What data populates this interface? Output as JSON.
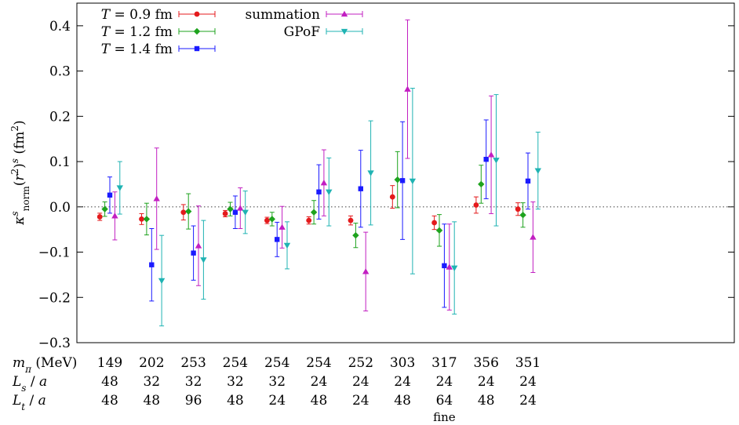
{
  "chart_data": {
    "type": "scatter",
    "ylabel": "κ^s_norm (r_2^2)^s (fm^2)",
    "ylim": [
      -0.3,
      0.45
    ],
    "yticks": [
      -0.3,
      -0.2,
      -0.1,
      0.0,
      0.1,
      0.2,
      0.3,
      0.4
    ],
    "ytick_labels": [
      "−0.3",
      "−0.2",
      "−0.1",
      "0.0",
      "0.1",
      "0.2",
      "0.3",
      "0.4"
    ],
    "zero_line": true,
    "grid": false,
    "legend_position": "top-left",
    "categories": [
      1,
      2,
      3,
      4,
      5,
      6,
      7,
      8,
      9,
      10,
      11
    ],
    "table_rows": [
      {
        "label": "m_π (MeV)",
        "values": [
          "149",
          "202",
          "253",
          "254",
          "254",
          "254",
          "252",
          "303",
          "317",
          "356",
          "351"
        ]
      },
      {
        "label": "L_s / a",
        "values": [
          "48",
          "32",
          "32",
          "32",
          "32",
          "24",
          "24",
          "24",
          "24",
          "24",
          "24"
        ]
      },
      {
        "label": "L_t / a",
        "values": [
          "48",
          "48",
          "96",
          "48",
          "24",
          "48",
          "24",
          "48",
          "64",
          "48",
          "24"
        ]
      }
    ],
    "annotations": [
      {
        "category_index": 8,
        "text": "fine"
      }
    ],
    "series": [
      {
        "name": "T = 0.9 fm",
        "color": "#e41a1c",
        "marker": "circle",
        "offset": -0.24,
        "y": [
          -0.022,
          -0.027,
          -0.012,
          -0.015,
          -0.03,
          -0.03,
          -0.03,
          0.022,
          -0.035,
          0.004,
          -0.005
        ],
        "err": [
          0.008,
          0.012,
          0.017,
          0.007,
          0.007,
          0.008,
          0.01,
          0.025,
          0.015,
          0.018,
          0.014
        ]
      },
      {
        "name": "T = 1.2 fm",
        "color": "#1ea31e",
        "marker": "diamond",
        "offset": -0.12,
        "y": [
          -0.005,
          -0.027,
          -0.01,
          -0.005,
          -0.027,
          -0.012,
          -0.063,
          0.06,
          -0.052,
          0.05,
          -0.018
        ],
        "err": [
          0.016,
          0.035,
          0.039,
          0.015,
          0.015,
          0.026,
          0.027,
          0.062,
          0.035,
          0.042,
          0.027
        ]
      },
      {
        "name": "T = 1.4 fm",
        "color": "#1a1aff",
        "marker": "square",
        "offset": 0.0,
        "y": [
          0.026,
          -0.128,
          -0.102,
          -0.012,
          -0.072,
          0.033,
          0.04,
          0.058,
          -0.13,
          0.105,
          0.057
        ]
      },
      {
        "name": "summation",
        "color": "#c21fc2",
        "marker": "triangle-up",
        "offset": 0.12,
        "y": [
          -0.02,
          0.018,
          -0.086,
          -0.003,
          -0.045,
          0.053,
          -0.143,
          0.26,
          -0.133,
          0.115,
          -0.067
        ],
        "err": [
          0.053,
          0.112,
          0.088,
          0.045,
          0.046,
          0.073,
          0.087,
          0.153,
          0.095,
          0.13,
          0.078
        ]
      },
      {
        "name": "GPoF",
        "color": "#1fb3b3",
        "marker": "triangle-down",
        "offset": 0.24,
        "y": [
          0.042,
          -0.163,
          -0.117,
          -0.012,
          -0.085,
          0.033,
          0.075,
          0.057,
          -0.135,
          0.103,
          0.08
        ],
        "err": [
          0.058,
          0.1,
          0.087,
          0.047,
          0.052,
          0.075,
          0.115,
          0.205,
          0.102,
          0.145,
          0.085
        ]
      }
    ]
  }
}
